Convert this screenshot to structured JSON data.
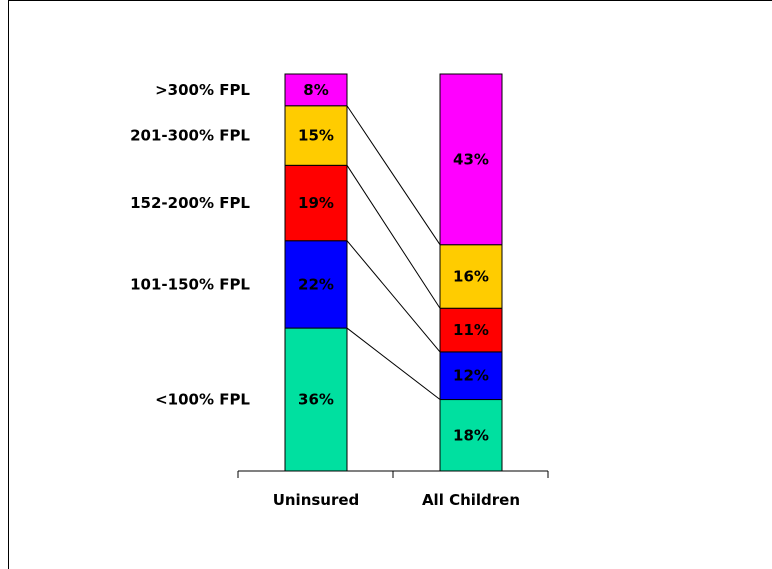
{
  "chart_data": {
    "type": "bar",
    "stacked": true,
    "categories": [
      "Uninsured",
      "All Children"
    ],
    "series": [
      {
        "name": "<100% FPL",
        "color": "#00e0a0",
        "values": [
          36,
          18
        ],
        "labels": [
          "36%",
          "18%"
        ]
      },
      {
        "name": "101-150% FPL",
        "color": "#0000ff",
        "values": [
          22,
          12
        ],
        "labels": [
          "22%",
          "12%"
        ]
      },
      {
        "name": "152-200% FPL",
        "color": "#ff0000",
        "values": [
          19,
          11
        ],
        "labels": [
          "19%",
          "11%"
        ]
      },
      {
        "name": "201-300% FPL",
        "color": "#ffcc00",
        "values": [
          15,
          16
        ],
        "labels": [
          "15%",
          "16%"
        ]
      },
      {
        "name": ">300% FPL",
        "color": "#ff00ff",
        "values": [
          8,
          43
        ],
        "labels": [
          "8%",
          "43%"
        ]
      }
    ],
    "title": "",
    "xlabel": "",
    "ylabel": "",
    "ylim": [
      0,
      100
    ],
    "grid": false,
    "legend": "left"
  }
}
